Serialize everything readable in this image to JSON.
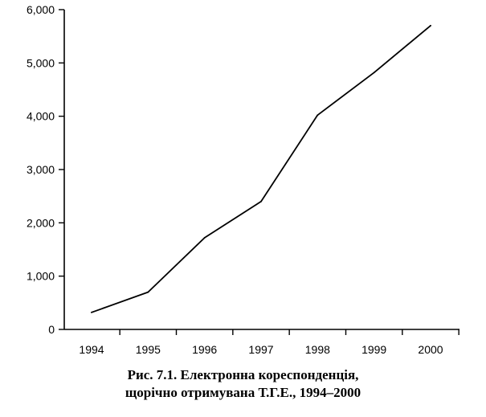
{
  "chart_data": {
    "type": "line",
    "x": [
      1994,
      1995,
      1996,
      1997,
      1998,
      1999,
      2000
    ],
    "xticks": [
      "1994",
      "1995",
      "1996",
      "1997",
      "1998",
      "1999",
      "2000"
    ],
    "series": [
      {
        "values": [
          320,
          700,
          1720,
          2400,
          4020,
          4820,
          5700
        ]
      }
    ],
    "yticks": [
      "0",
      "1,000",
      "2,000",
      "3,000",
      "4,000",
      "5,000",
      "6,000"
    ],
    "ylim": [
      0,
      6000
    ],
    "grid": false,
    "legend": "none",
    "line_color": "#000000",
    "caption": {
      "line1": "Рис. 7.1. Електронна кореспонденція,",
      "line2": "щорічно отримувана Т.Г.Е., 1994–2000"
    }
  }
}
